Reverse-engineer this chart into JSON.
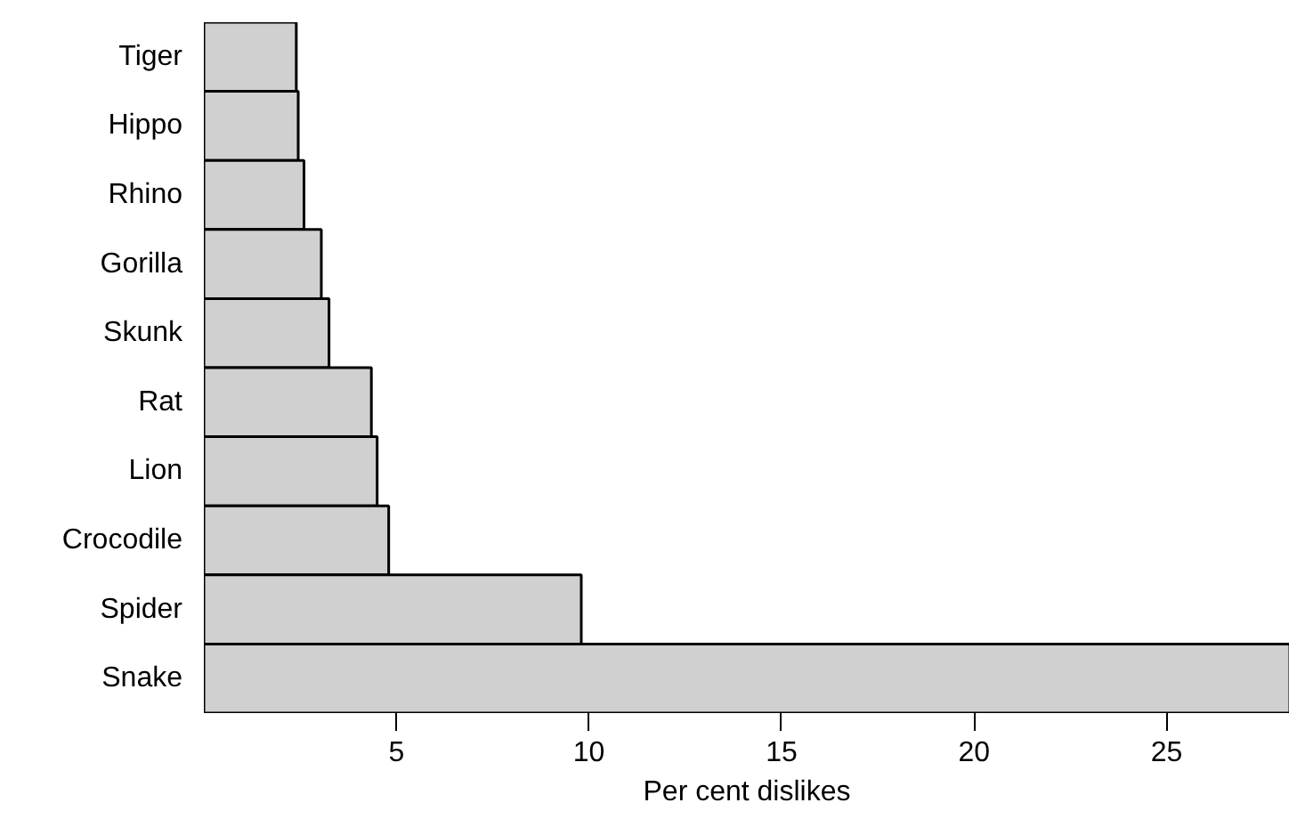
{
  "chart_data": {
    "type": "bar",
    "orientation": "horizontal",
    "xlabel": "Per cent dislikes",
    "categories": [
      "Tiger",
      "Hippo",
      "Rhino",
      "Gorilla",
      "Skunk",
      "Rat",
      "Lion",
      "Crocodile",
      "Spider",
      "Snake"
    ],
    "values": [
      2.4,
      2.45,
      2.6,
      3.05,
      3.25,
      4.35,
      4.5,
      4.8,
      9.8,
      28.2
    ],
    "color": "#d0d0d0",
    "xlim": [
      0,
      28.2
    ],
    "xticks": [
      5,
      10,
      15,
      20,
      25
    ],
    "grid": false
  }
}
